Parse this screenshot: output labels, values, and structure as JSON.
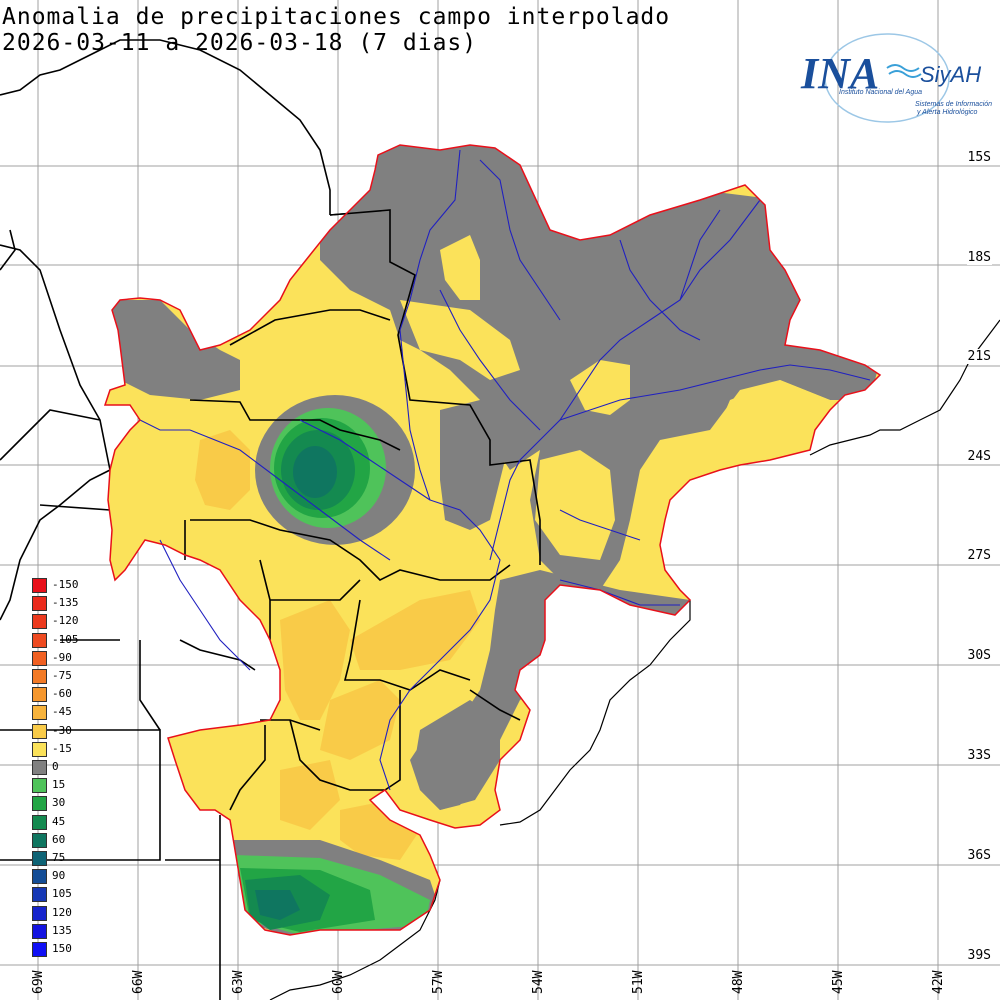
{
  "title": {
    "line1": "Anomalia de precipitaciones campo interpolado",
    "line2": "2026-03-11 a 2026-03-18 (7 dias)"
  },
  "logo": {
    "brand": "INA",
    "brand2": "SiyAH",
    "sub1": "Instituto Nacional del Agua",
    "sub2": "Sistemas de Información",
    "sub3": "y Alerta Hidrológico"
  },
  "lat_labels": [
    "15S",
    "18S",
    "21S",
    "24S",
    "27S",
    "30S",
    "33S",
    "36S",
    "39S"
  ],
  "lon_labels": [
    "69W",
    "66W",
    "63W",
    "60W",
    "57W",
    "54W",
    "51W",
    "48W",
    "45W",
    "42W"
  ],
  "legend": [
    {
      "label": "-150",
      "color": "#e8101a"
    },
    {
      "label": "-135",
      "color": "#ea2a1c"
    },
    {
      "label": "-120",
      "color": "#ec3a1e"
    },
    {
      "label": "-105",
      "color": "#ee4a20"
    },
    {
      "label": "-90",
      "color": "#f06022"
    },
    {
      "label": "-75",
      "color": "#f27a26"
    },
    {
      "label": "-60",
      "color": "#f5972e"
    },
    {
      "label": "-45",
      "color": "#f7b33c"
    },
    {
      "label": "-30",
      "color": "#f9cb48"
    },
    {
      "label": "-15",
      "color": "#fbe25a"
    },
    {
      "label": "0",
      "color": "#808080"
    },
    {
      "label": "15",
      "color": "#4fc35a"
    },
    {
      "label": "30",
      "color": "#22a545"
    },
    {
      "label": "45",
      "color": "#148a50"
    },
    {
      "label": "60",
      "color": "#0f7660"
    },
    {
      "label": "75",
      "color": "#0e6375"
    },
    {
      "label": "90",
      "color": "#144d96"
    },
    {
      "label": "105",
      "color": "#1638b5"
    },
    {
      "label": "120",
      "color": "#1624cc"
    },
    {
      "label": "135",
      "color": "#1414e0"
    },
    {
      "label": "150",
      "color": "#1010f5"
    }
  ],
  "colors": {
    "gray": "#808080",
    "yellow": "#fbe25a",
    "lightorange": "#f9cb48",
    "orange": "#f7b33c",
    "green1": "#4fc35a",
    "green2": "#22a545",
    "green3": "#148a50",
    "teal": "#0f7660",
    "basin_border": "#e8101a",
    "rivers": "#2020c0",
    "borders": "#000000",
    "grid": "#a0a0a0",
    "logo_blue": "#1a4f9c"
  }
}
